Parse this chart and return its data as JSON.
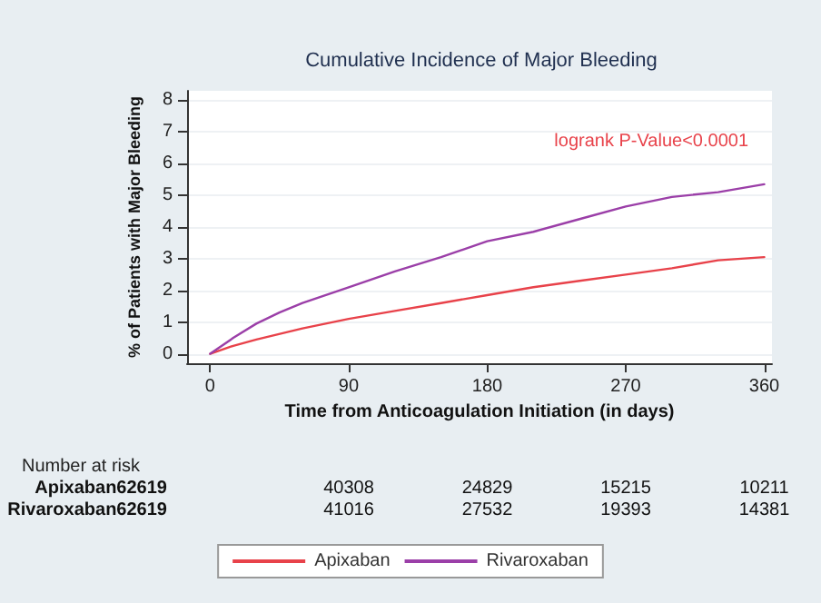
{
  "chart_data": {
    "type": "line",
    "title": "Cumulative Incidence of Major Bleeding",
    "xlabel": "Time from Anticoagulation Initiation (in days)",
    "ylabel": "% of Patients with Major Bleeding",
    "xlim": [
      -15,
      365
    ],
    "xticks": [
      0,
      90,
      180,
      270,
      360
    ],
    "ylim": [
      -0.3,
      8.3
    ],
    "yticks": [
      0,
      1,
      2,
      3,
      4,
      5,
      6,
      7,
      8
    ],
    "grid": "y",
    "legend": "bottom",
    "marker": "none",
    "line_style": "solid",
    "annotations": [
      "logrank P-Value<0.0001",
      "Number at risk",
      "Apixaban62619",
      "40308",
      "24829",
      "15215",
      "10211",
      "Rivaroxaban62619",
      "41016",
      "27532",
      "19393",
      "14381"
    ],
    "series": [
      {
        "name": "Apixaban",
        "color": "#e8424a",
        "x": [
          0,
          15,
          30,
          60,
          90,
          120,
          150,
          180,
          210,
          240,
          270,
          300,
          330,
          360
        ],
        "values": [
          0,
          0.25,
          0.45,
          0.8,
          1.1,
          1.35,
          1.6,
          1.85,
          2.1,
          2.3,
          2.5,
          2.7,
          2.95,
          3.05
        ]
      },
      {
        "name": "Rivaroxaban",
        "color": "#9b3fa8",
        "x": [
          0,
          15,
          30,
          45,
          60,
          90,
          120,
          150,
          180,
          210,
          240,
          270,
          300,
          330,
          360
        ],
        "values": [
          0,
          0.5,
          0.95,
          1.3,
          1.6,
          2.1,
          2.6,
          3.05,
          3.55,
          3.85,
          4.25,
          4.65,
          4.95,
          5.1,
          5.35
        ]
      }
    ]
  }
}
